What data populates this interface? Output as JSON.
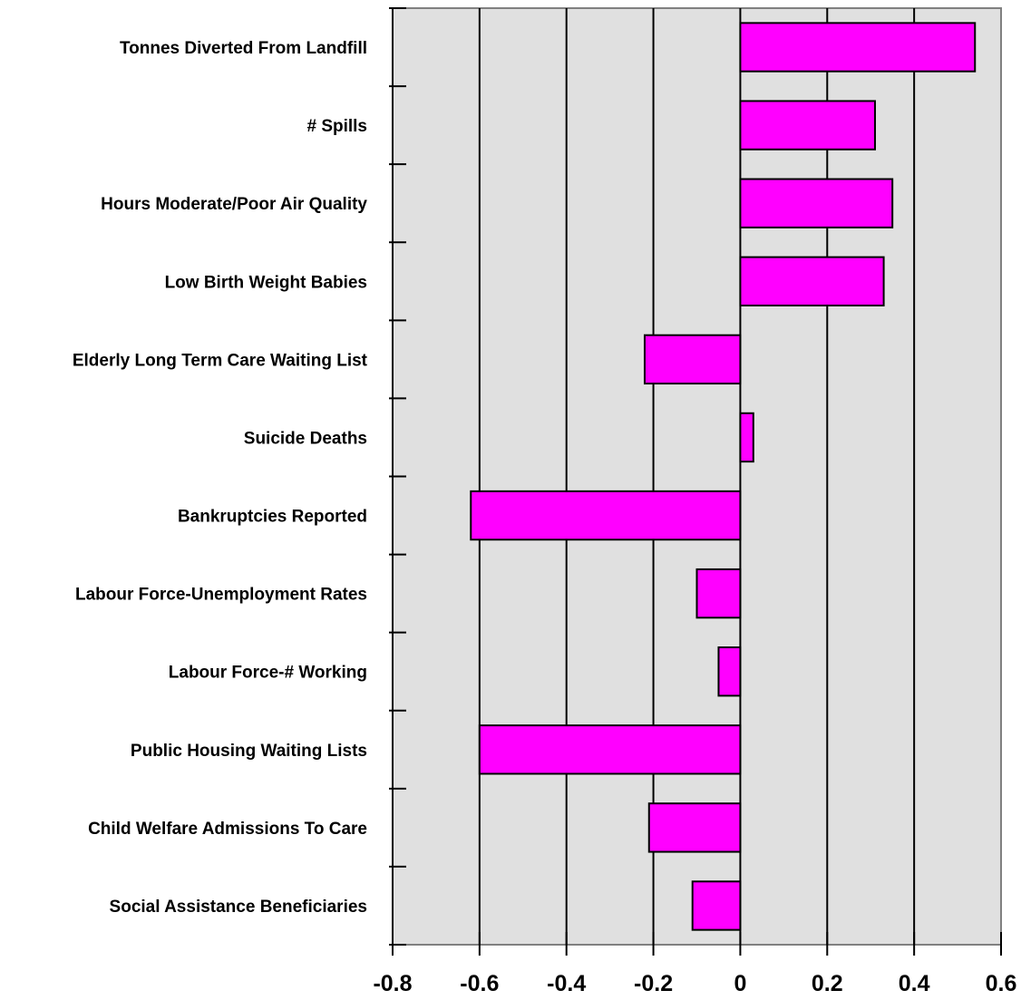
{
  "chart_data": {
    "type": "bar",
    "orientation": "horizontal",
    "title": "",
    "xlabel": "",
    "ylabel": "",
    "categories": [
      "Tonnes Diverted From Landfill",
      "#  Spills",
      "Hours Moderate/Poor Air Quality",
      "Low Birth Weight Babies",
      "Elderly Long Term Care Waiting List",
      "Suicide Deaths",
      "Bankruptcies Reported",
      "Labour Force-Unemployment Rates",
      "Labour Force-# Working",
      "Public Housing Waiting Lists",
      "Child Welfare Admissions To Care",
      "Social Assistance Beneficiaries"
    ],
    "values": [
      0.54,
      0.31,
      0.35,
      0.33,
      -0.22,
      0.03,
      -0.62,
      -0.1,
      -0.05,
      -0.6,
      -0.21,
      -0.11
    ],
    "xlim": [
      -0.8,
      0.6
    ],
    "xticks": [
      "-0.8",
      "-0.6",
      "-0.4",
      "-0.2",
      "0",
      "0.2",
      "0.4",
      "0.6"
    ],
    "grid": "vertical lines",
    "legend": "none",
    "colors": {
      "bar_fill": "#ff00ff",
      "bar_stroke": "#000000",
      "plot_background": "#e0e0e0",
      "gridline": "#000000",
      "frame": "#808080"
    }
  }
}
